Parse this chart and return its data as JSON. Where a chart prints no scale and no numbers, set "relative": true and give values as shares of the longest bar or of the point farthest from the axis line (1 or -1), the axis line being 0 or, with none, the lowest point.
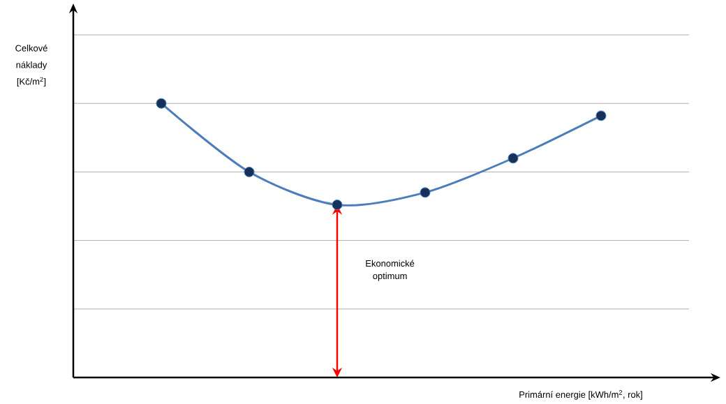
{
  "chart_data": {
    "type": "line",
    "relative": true,
    "xlabel": "Primární energie [kWh/m$^{2}$, rok]",
    "ylabel": "Celkové náklady [Kč/m$^{2}$]",
    "categories": [
      null,
      null,
      null,
      null,
      null,
      null
    ],
    "series": [
      {
        "color": "#4a7ebb",
        "values": [
          1,
          0.75,
          0.63,
          0.675,
          0.8,
          0.955
        ]
      }
    ],
    "marker": "circle",
    "line_style": "solid",
    "grid": "y",
    "annotations": [
      "Ekonomické optimum"
    ]
  }
}
